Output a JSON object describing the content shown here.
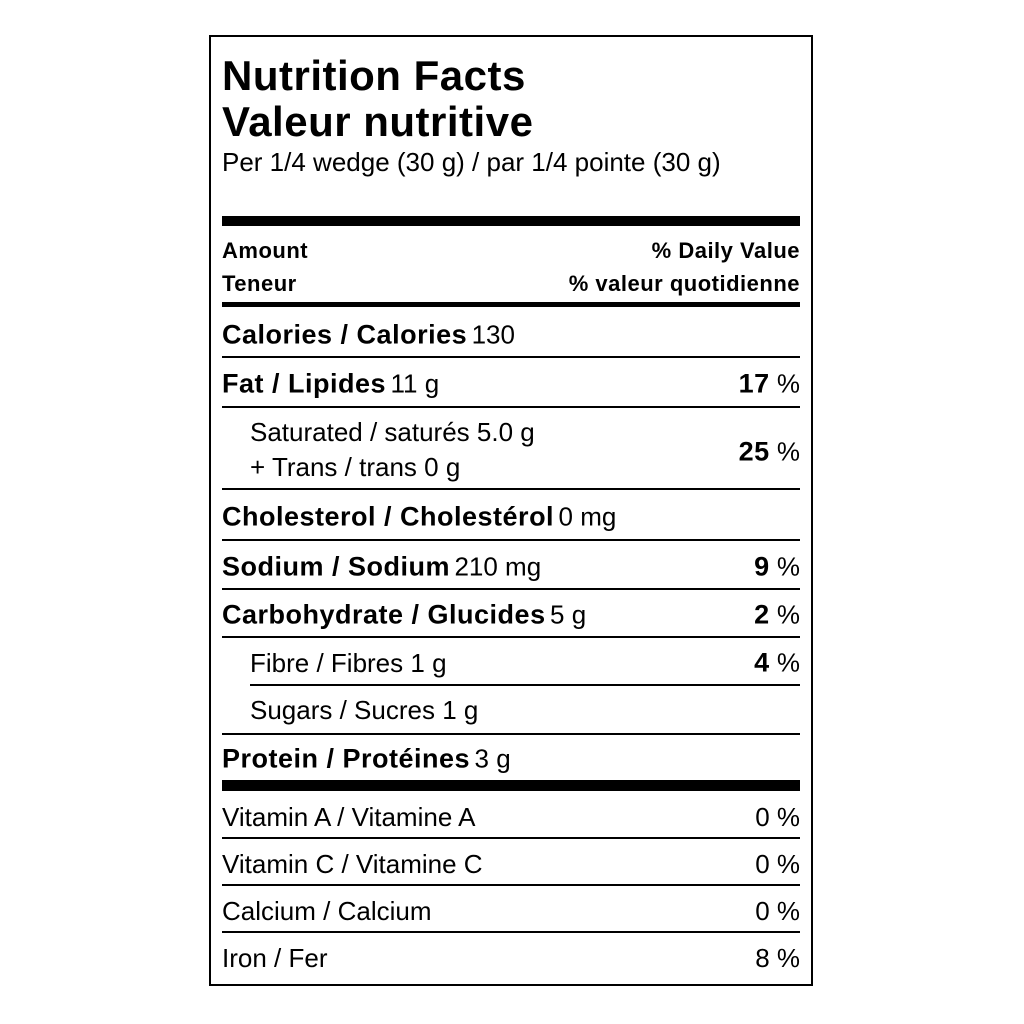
{
  "title": {
    "en": "Nutrition Facts",
    "fr": "Valeur nutritive"
  },
  "serving": "Per 1/4 wedge (30 g) / par 1/4 pointe (30 g)",
  "header": {
    "amount": "Amount",
    "amount_fr": "Teneur",
    "daily_value": "% Daily Value",
    "daily_value_fr": "% valeur quotidienne"
  },
  "nutrients": [
    {
      "name": "Calories / Calories",
      "amount": "130"
    },
    {
      "name": "Fat / Lipides",
      "amount": "11 g",
      "dv": "17",
      "unit": "%"
    },
    {
      "name": "Saturated / saturés",
      "amount": "5.0 g",
      "name2": "+ Trans / trans",
      "amount2": "0 g",
      "dv": "25",
      "unit": "%"
    },
    {
      "name": "Cholesterol / Cholestérol",
      "amount": "0 mg"
    },
    {
      "name": "Sodium / Sodium",
      "amount": "210 mg",
      "dv": "9",
      "unit": "%"
    },
    {
      "name": "Carbohydrate / Glucides",
      "amount": "5 g",
      "dv": "2",
      "unit": "%"
    },
    {
      "name": "Fibre / Fibres",
      "amount": "1 g",
      "dv": "4",
      "unit": "%"
    },
    {
      "name": "Sugars / Sucres",
      "amount": "1 g"
    },
    {
      "name": "Protein / Protéines",
      "amount": "3 g"
    }
  ],
  "vitamins": [
    {
      "name": "Vitamin A / Vitamine A",
      "dv": "0 %"
    },
    {
      "name": "Vitamin C / Vitamine C",
      "dv": "0 %"
    },
    {
      "name": "Calcium / Calcium",
      "dv": "0 %"
    },
    {
      "name": "Iron / Fer",
      "dv": "8 %"
    }
  ]
}
